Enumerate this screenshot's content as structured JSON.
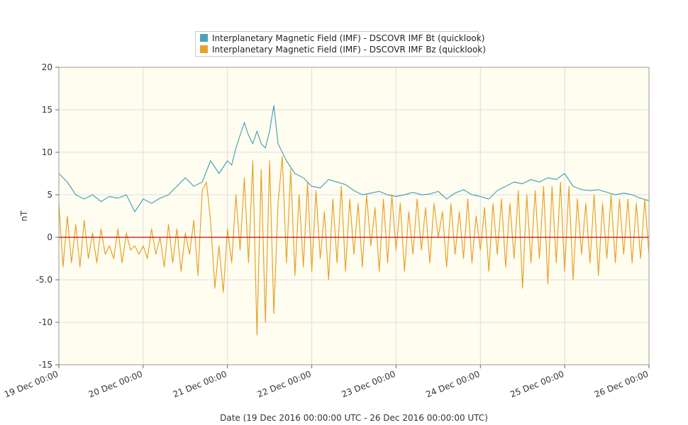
{
  "chart_data": {
    "type": "line",
    "title": "",
    "xlabel": "Date (19 Dec 2016 00:00:00 UTC - 26 Dec 2016 00:00:00 UTC)",
    "ylabel": "nT",
    "ylim": [
      -15,
      20
    ],
    "xlim_days": [
      0,
      7
    ],
    "yticks": [
      {
        "v": 20,
        "label": "20"
      },
      {
        "v": 15,
        "label": "15"
      },
      {
        "v": 10,
        "label": "10"
      },
      {
        "v": 5,
        "label": "5"
      },
      {
        "v": 0,
        "label": "0"
      },
      {
        "v": -5,
        "label": "-5.0"
      },
      {
        "v": -10,
        "label": "-10"
      },
      {
        "v": -15,
        "label": "-15"
      }
    ],
    "xticks": [
      "19 Dec 00:00",
      "20 Dec 00:00",
      "21 Dec 00:00",
      "22 Dec 00:00",
      "23 Dec 00:00",
      "24 Dec 00:00",
      "25 Dec 00:00",
      "26 Dec 00:00"
    ],
    "grid": true,
    "legend_position": "top-center",
    "zero_line_color": "#cc0000",
    "plot_background": "#fffdf0",
    "series": [
      {
        "name": "Interplanetary Magnetic Field (IMF) - DSCOVR IMF Bt (quicklook)",
        "color": "#4aa3b9",
        "x_day": [
          0.0,
          0.1,
          0.2,
          0.3,
          0.4,
          0.5,
          0.6,
          0.7,
          0.8,
          0.9,
          1.0,
          1.1,
          1.2,
          1.3,
          1.4,
          1.5,
          1.6,
          1.7,
          1.8,
          1.9,
          2.0,
          2.05,
          2.1,
          2.15,
          2.2,
          2.25,
          2.3,
          2.35,
          2.4,
          2.45,
          2.5,
          2.55,
          2.6,
          2.65,
          2.7,
          2.8,
          2.9,
          3.0,
          3.1,
          3.2,
          3.3,
          3.4,
          3.5,
          3.6,
          3.7,
          3.8,
          3.9,
          4.0,
          4.1,
          4.2,
          4.3,
          4.4,
          4.5,
          4.6,
          4.7,
          4.8,
          4.9,
          5.0,
          5.1,
          5.2,
          5.3,
          5.4,
          5.5,
          5.6,
          5.7,
          5.8,
          5.9,
          6.0,
          6.1,
          6.2,
          6.3,
          6.4,
          6.5,
          6.6,
          6.7,
          6.8,
          6.9,
          7.0
        ],
        "y": [
          7.5,
          6.5,
          5.0,
          4.5,
          5.0,
          4.2,
          4.8,
          4.6,
          5.0,
          3.0,
          4.5,
          4.0,
          4.6,
          5.0,
          6.0,
          7.0,
          6.0,
          6.5,
          9.0,
          7.5,
          9.0,
          8.5,
          10.5,
          12.0,
          13.5,
          12.0,
          11.0,
          12.5,
          11.0,
          10.5,
          12.5,
          15.5,
          11.0,
          10.0,
          9.0,
          7.5,
          7.0,
          6.0,
          5.8,
          6.8,
          6.5,
          6.2,
          5.5,
          5.0,
          5.2,
          5.4,
          5.0,
          4.8,
          5.0,
          5.3,
          5.0,
          5.1,
          5.4,
          4.5,
          5.2,
          5.6,
          5.0,
          4.8,
          4.5,
          5.5,
          6.0,
          6.5,
          6.3,
          6.8,
          6.5,
          7.0,
          6.8,
          7.5,
          6.0,
          5.6,
          5.5,
          5.6,
          5.3,
          5.0,
          5.2,
          5.0,
          4.6,
          4.3
        ]
      },
      {
        "name": "Interplanetary Magnetic Field (IMF) - DSCOVR IMF Bz (quicklook)",
        "color": "#e8a12a",
        "x_day": [
          0.0,
          0.05,
          0.1,
          0.15,
          0.2,
          0.25,
          0.3,
          0.35,
          0.4,
          0.45,
          0.5,
          0.55,
          0.6,
          0.65,
          0.7,
          0.75,
          0.8,
          0.85,
          0.9,
          0.95,
          1.0,
          1.05,
          1.1,
          1.15,
          1.2,
          1.25,
          1.3,
          1.35,
          1.4,
          1.45,
          1.5,
          1.55,
          1.6,
          1.65,
          1.7,
          1.75,
          1.8,
          1.85,
          1.9,
          1.95,
          2.0,
          2.05,
          2.1,
          2.15,
          2.2,
          2.25,
          2.3,
          2.35,
          2.4,
          2.45,
          2.5,
          2.55,
          2.6,
          2.65,
          2.7,
          2.75,
          2.8,
          2.85,
          2.9,
          2.95,
          3.0,
          3.05,
          3.1,
          3.15,
          3.2,
          3.25,
          3.3,
          3.35,
          3.4,
          3.45,
          3.5,
          3.55,
          3.6,
          3.65,
          3.7,
          3.75,
          3.8,
          3.85,
          3.9,
          3.95,
          4.0,
          4.05,
          4.1,
          4.15,
          4.2,
          4.25,
          4.3,
          4.35,
          4.4,
          4.45,
          4.5,
          4.55,
          4.6,
          4.65,
          4.7,
          4.75,
          4.8,
          4.85,
          4.9,
          4.95,
          5.0,
          5.05,
          5.1,
          5.15,
          5.2,
          5.25,
          5.3,
          5.35,
          5.4,
          5.45,
          5.5,
          5.55,
          5.6,
          5.65,
          5.7,
          5.75,
          5.8,
          5.85,
          5.9,
          5.95,
          6.0,
          6.05,
          6.1,
          6.15,
          6.2,
          6.25,
          6.3,
          6.35,
          6.4,
          6.45,
          6.5,
          6.55,
          6.6,
          6.65,
          6.7,
          6.75,
          6.8,
          6.85,
          6.9,
          6.95,
          7.0
        ],
        "y": [
          4.0,
          -3.5,
          2.5,
          -3.0,
          1.5,
          -3.5,
          2.0,
          -2.5,
          0.5,
          -3.0,
          1.0,
          -2.0,
          -1.0,
          -2.5,
          1.0,
          -3.0,
          0.5,
          -1.5,
          -1.0,
          -2.0,
          -1.0,
          -2.5,
          1.0,
          -2.0,
          0.0,
          -3.5,
          1.5,
          -3.0,
          1.0,
          -4.0,
          0.5,
          -2.0,
          2.0,
          -4.5,
          5.5,
          6.5,
          2.0,
          -6.0,
          -1.0,
          -6.5,
          1.0,
          -3.0,
          5.0,
          -1.5,
          7.0,
          -3.0,
          9.0,
          -11.5,
          8.0,
          -10.0,
          9.0,
          -9.0,
          4.0,
          9.5,
          -3.0,
          8.0,
          -4.5,
          5.0,
          -3.5,
          6.5,
          -4.0,
          5.5,
          -2.5,
          3.0,
          -5.0,
          4.5,
          -3.0,
          6.0,
          -4.0,
          4.5,
          -2.0,
          4.0,
          -3.5,
          5.0,
          -1.0,
          3.5,
          -4.0,
          4.5,
          -3.0,
          5.0,
          -1.5,
          4.0,
          -4.0,
          3.0,
          -2.0,
          4.5,
          -1.5,
          3.5,
          -3.0,
          4.0,
          0.0,
          3.0,
          -3.5,
          4.0,
          -2.0,
          3.0,
          -2.5,
          4.5,
          -3.0,
          2.5,
          -1.5,
          3.5,
          -4.0,
          4.0,
          -2.0,
          4.5,
          -3.5,
          4.0,
          -2.5,
          5.5,
          -6.0,
          5.0,
          -3.0,
          5.5,
          -2.5,
          6.0,
          -5.5,
          6.0,
          -3.0,
          6.5,
          -4.0,
          6.0,
          -5.0,
          4.5,
          -2.0,
          4.0,
          -3.0,
          5.0,
          -4.5,
          4.0,
          -2.5,
          5.0,
          -3.0,
          4.5,
          -2.0,
          4.5,
          -3.0,
          4.0,
          -2.5,
          4.5,
          -2.0
        ]
      }
    ]
  }
}
